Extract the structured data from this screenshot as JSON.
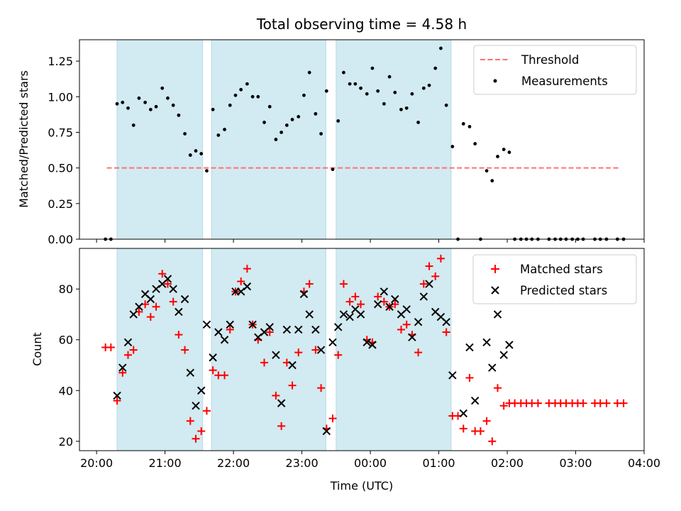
{
  "title": "Total observing time = 4.58 h",
  "xlabel": "Time (UTC)",
  "x_ticks": [
    "20:00",
    "21:00",
    "22:00",
    "23:00",
    "00:00",
    "01:00",
    "02:00",
    "03:00",
    "04:00"
  ],
  "chart_data": [
    {
      "type": "scatter",
      "ylabel": "Matched/Predicted stars",
      "x_unit": "hours since 20:00 UTC",
      "xlim": [
        -0.25,
        8.0
      ],
      "ylim": [
        0.0,
        1.4
      ],
      "y_ticks": [
        "0.00",
        "0.25",
        "0.50",
        "0.75",
        "1.00",
        "1.25"
      ],
      "shaded_intervals": [
        [
          0.3,
          1.55
        ],
        [
          1.68,
          3.35
        ],
        [
          3.5,
          5.18
        ]
      ],
      "shade_color": "#add8e6",
      "series": [
        {
          "name": "Threshold",
          "style": "dashed-line",
          "color": "#ff7070",
          "points": [
            [
              0.15,
              0.5
            ],
            [
              7.65,
              0.5
            ]
          ]
        },
        {
          "name": "Measurements",
          "style": "dot",
          "color": "#000000",
          "points": [
            [
              0.13,
              0.0
            ],
            [
              0.21,
              0.0
            ],
            [
              0.3,
              0.95
            ],
            [
              0.38,
              0.96
            ],
            [
              0.46,
              0.92
            ],
            [
              0.54,
              0.8
            ],
            [
              0.62,
              0.99
            ],
            [
              0.71,
              0.96
            ],
            [
              0.79,
              0.91
            ],
            [
              0.87,
              0.93
            ],
            [
              0.96,
              1.06
            ],
            [
              1.04,
              0.99
            ],
            [
              1.12,
              0.94
            ],
            [
              1.2,
              0.87
            ],
            [
              1.29,
              0.74
            ],
            [
              1.37,
              0.59
            ],
            [
              1.45,
              0.62
            ],
            [
              1.53,
              0.6
            ],
            [
              1.61,
              0.48
            ],
            [
              1.7,
              0.91
            ],
            [
              1.78,
              0.73
            ],
            [
              1.87,
              0.77
            ],
            [
              1.95,
              0.94
            ],
            [
              2.03,
              1.01
            ],
            [
              2.11,
              1.05
            ],
            [
              2.2,
              1.09
            ],
            [
              2.28,
              1.0
            ],
            [
              2.36,
              1.0
            ],
            [
              2.45,
              0.82
            ],
            [
              2.53,
              0.93
            ],
            [
              2.62,
              0.7
            ],
            [
              2.7,
              0.75
            ],
            [
              2.78,
              0.8
            ],
            [
              2.86,
              0.84
            ],
            [
              2.95,
              0.86
            ],
            [
              3.03,
              1.01
            ],
            [
              3.11,
              1.17
            ],
            [
              3.2,
              0.88
            ],
            [
              3.28,
              0.74
            ],
            [
              3.36,
              1.04
            ],
            [
              3.45,
              0.49
            ],
            [
              3.53,
              0.83
            ],
            [
              3.61,
              1.17
            ],
            [
              3.7,
              1.09
            ],
            [
              3.78,
              1.09
            ],
            [
              3.86,
              1.06
            ],
            [
              3.95,
              1.02
            ],
            [
              4.03,
              1.2
            ],
            [
              4.11,
              1.04
            ],
            [
              4.2,
              0.95
            ],
            [
              4.28,
              1.14
            ],
            [
              4.36,
              1.03
            ],
            [
              4.45,
              0.91
            ],
            [
              4.53,
              0.92
            ],
            [
              4.61,
              1.02
            ],
            [
              4.7,
              0.82
            ],
            [
              4.78,
              1.06
            ],
            [
              4.86,
              1.08
            ],
            [
              4.95,
              1.2
            ],
            [
              5.03,
              1.34
            ],
            [
              5.11,
              0.94
            ],
            [
              5.2,
              0.65
            ],
            [
              5.28,
              0.0
            ],
            [
              5.36,
              0.81
            ],
            [
              5.45,
              0.79
            ],
            [
              5.53,
              0.67
            ],
            [
              5.61,
              0.0
            ],
            [
              5.7,
              0.48
            ],
            [
              5.78,
              0.41
            ],
            [
              5.86,
              0.58
            ],
            [
              5.95,
              0.63
            ],
            [
              6.03,
              0.61
            ],
            [
              6.11,
              0.0
            ],
            [
              6.2,
              0.0
            ],
            [
              6.28,
              0.0
            ],
            [
              6.36,
              0.0
            ],
            [
              6.45,
              0.0
            ],
            [
              6.61,
              0.0
            ],
            [
              6.7,
              0.0
            ],
            [
              6.78,
              0.0
            ],
            [
              6.86,
              0.0
            ],
            [
              6.95,
              0.0
            ],
            [
              7.03,
              0.0
            ],
            [
              7.11,
              0.0
            ],
            [
              7.28,
              0.0
            ],
            [
              7.36,
              0.0
            ],
            [
              7.45,
              0.0
            ],
            [
              7.61,
              0.0
            ],
            [
              7.7,
              0.0
            ]
          ]
        }
      ],
      "legend": {
        "location": "upper right",
        "entries": [
          "Threshold",
          "Measurements"
        ]
      }
    },
    {
      "type": "scatter",
      "ylabel": "Count",
      "x_unit": "hours since 20:00 UTC",
      "xlim": [
        -0.25,
        8.0
      ],
      "ylim": [
        16.3,
        96.0
      ],
      "y_ticks": [
        "20",
        "40",
        "60",
        "80"
      ],
      "shaded_intervals": [
        [
          0.3,
          1.55
        ],
        [
          1.68,
          3.35
        ],
        [
          3.5,
          5.18
        ]
      ],
      "shade_color": "#add8e6",
      "series": [
        {
          "name": "Matched stars",
          "style": "plus",
          "color": "#ff0000",
          "points": [
            [
              0.13,
              57
            ],
            [
              0.21,
              57
            ],
            [
              0.3,
              36
            ],
            [
              0.38,
              47
            ],
            [
              0.46,
              54
            ],
            [
              0.54,
              56
            ],
            [
              0.62,
              71
            ],
            [
              0.71,
              74
            ],
            [
              0.79,
              69
            ],
            [
              0.87,
              73
            ],
            [
              0.96,
              86
            ],
            [
              1.04,
              82
            ],
            [
              1.12,
              75
            ],
            [
              1.2,
              62
            ],
            [
              1.29,
              56
            ],
            [
              1.37,
              28
            ],
            [
              1.45,
              21
            ],
            [
              1.53,
              24
            ],
            [
              1.61,
              32
            ],
            [
              1.7,
              48
            ],
            [
              1.78,
              46
            ],
            [
              1.87,
              46
            ],
            [
              1.95,
              64
            ],
            [
              2.03,
              79
            ],
            [
              2.11,
              83
            ],
            [
              2.2,
              88
            ],
            [
              2.28,
              66
            ],
            [
              2.36,
              60
            ],
            [
              2.45,
              51
            ],
            [
              2.53,
              63
            ],
            [
              2.62,
              38
            ],
            [
              2.7,
              26
            ],
            [
              2.78,
              51
            ],
            [
              2.86,
              42
            ],
            [
              2.95,
              55
            ],
            [
              3.03,
              79
            ],
            [
              3.11,
              82
            ],
            [
              3.2,
              56
            ],
            [
              3.28,
              41
            ],
            [
              3.36,
              25
            ],
            [
              3.45,
              29
            ],
            [
              3.53,
              54
            ],
            [
              3.61,
              82
            ],
            [
              3.7,
              75
            ],
            [
              3.78,
              77
            ],
            [
              3.86,
              74
            ],
            [
              3.95,
              60
            ],
            [
              4.03,
              59
            ],
            [
              4.11,
              77
            ],
            [
              4.2,
              75
            ],
            [
              4.28,
              73
            ],
            [
              4.36,
              74
            ],
            [
              4.45,
              64
            ],
            [
              4.53,
              66
            ],
            [
              4.61,
              62
            ],
            [
              4.7,
              55
            ],
            [
              4.78,
              82
            ],
            [
              4.86,
              89
            ],
            [
              4.95,
              85
            ],
            [
              5.03,
              92
            ],
            [
              5.11,
              63
            ],
            [
              5.2,
              30
            ],
            [
              5.28,
              30
            ],
            [
              5.36,
              25
            ],
            [
              5.45,
              45
            ],
            [
              5.53,
              24
            ],
            [
              5.61,
              24
            ],
            [
              5.7,
              28
            ],
            [
              5.78,
              20
            ],
            [
              5.86,
              41
            ],
            [
              5.95,
              34
            ],
            [
              6.03,
              35
            ],
            [
              6.11,
              35
            ],
            [
              6.2,
              35
            ],
            [
              6.28,
              35
            ],
            [
              6.36,
              35
            ],
            [
              6.45,
              35
            ],
            [
              6.61,
              35
            ],
            [
              6.7,
              35
            ],
            [
              6.78,
              35
            ],
            [
              6.86,
              35
            ],
            [
              6.95,
              35
            ],
            [
              7.03,
              35
            ],
            [
              7.11,
              35
            ],
            [
              7.28,
              35
            ],
            [
              7.36,
              35
            ],
            [
              7.45,
              35
            ],
            [
              7.61,
              35
            ],
            [
              7.7,
              35
            ]
          ]
        },
        {
          "name": "Predicted stars",
          "style": "cross",
          "color": "#000000",
          "points": [
            [
              0.3,
              38
            ],
            [
              0.38,
              49
            ],
            [
              0.46,
              59
            ],
            [
              0.54,
              70
            ],
            [
              0.62,
              73
            ],
            [
              0.71,
              78
            ],
            [
              0.79,
              76
            ],
            [
              0.87,
              80
            ],
            [
              0.96,
              82
            ],
            [
              1.04,
              84
            ],
            [
              1.12,
              80
            ],
            [
              1.2,
              71
            ],
            [
              1.29,
              76
            ],
            [
              1.37,
              47
            ],
            [
              1.45,
              34
            ],
            [
              1.53,
              40
            ],
            [
              1.61,
              66
            ],
            [
              1.7,
              53
            ],
            [
              1.78,
              63
            ],
            [
              1.87,
              60
            ],
            [
              1.95,
              66
            ],
            [
              2.03,
              79
            ],
            [
              2.11,
              79
            ],
            [
              2.2,
              81
            ],
            [
              2.28,
              66
            ],
            [
              2.36,
              61
            ],
            [
              2.45,
              63
            ],
            [
              2.53,
              65
            ],
            [
              2.62,
              54
            ],
            [
              2.7,
              35
            ],
            [
              2.78,
              64
            ],
            [
              2.86,
              50
            ],
            [
              2.95,
              64
            ],
            [
              3.03,
              78
            ],
            [
              3.11,
              70
            ],
            [
              3.2,
              64
            ],
            [
              3.28,
              56
            ],
            [
              3.36,
              24
            ],
            [
              3.45,
              59
            ],
            [
              3.53,
              65
            ],
            [
              3.61,
              70
            ],
            [
              3.7,
              69
            ],
            [
              3.78,
              72
            ],
            [
              3.86,
              70
            ],
            [
              3.95,
              59
            ],
            [
              4.03,
              58
            ],
            [
              4.11,
              74
            ],
            [
              4.2,
              79
            ],
            [
              4.28,
              73
            ],
            [
              4.36,
              76
            ],
            [
              4.45,
              70
            ],
            [
              4.53,
              72
            ],
            [
              4.61,
              61
            ],
            [
              4.7,
              67
            ],
            [
              4.78,
              77
            ],
            [
              4.86,
              82
            ],
            [
              4.95,
              71
            ],
            [
              5.03,
              69
            ],
            [
              5.11,
              67
            ],
            [
              5.2,
              46
            ],
            [
              5.36,
              31
            ],
            [
              5.45,
              57
            ],
            [
              5.53,
              36
            ],
            [
              5.7,
              59
            ],
            [
              5.78,
              49
            ],
            [
              5.86,
              70
            ],
            [
              5.95,
              54
            ],
            [
              6.03,
              58
            ]
          ]
        }
      ],
      "legend": {
        "location": "upper right",
        "entries": [
          "Matched stars",
          "Predicted stars"
        ]
      }
    }
  ]
}
